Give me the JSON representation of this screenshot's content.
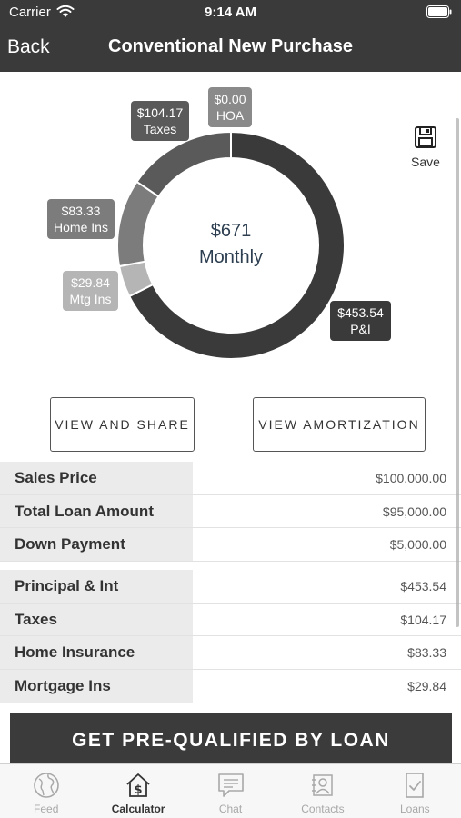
{
  "status_bar": {
    "carrier": "Carrier",
    "time": "9:14 AM"
  },
  "nav": {
    "back_label": "Back",
    "title": "Conventional New Purchase"
  },
  "chart": {
    "center_amount": "$671",
    "center_label": "Monthly",
    "segments": [
      {
        "key": "hoa",
        "amount": "$0.00",
        "label": "HOA",
        "value": 0.0,
        "color": "#8a8a8a"
      },
      {
        "key": "pi",
        "amount": "$453.54",
        "label": "P&I",
        "value": 453.54,
        "color": "#3a3a3a"
      },
      {
        "key": "mtg_ins",
        "amount": "$29.84",
        "label": "Mtg Ins",
        "value": 29.84,
        "color": "#b5b5b5"
      },
      {
        "key": "home_ins",
        "amount": "$83.33",
        "label": "Home Ins",
        "value": 83.33,
        "color": "#7c7c7c"
      },
      {
        "key": "taxes",
        "amount": "$104.17",
        "label": "Taxes",
        "value": 104.17,
        "color": "#5a5a5a"
      }
    ]
  },
  "save": {
    "label": "Save",
    "icon": "save-icon"
  },
  "buttons": {
    "view_share": "VIEW AND SHARE",
    "view_amortization": "VIEW AMORTIZATION"
  },
  "loan_details": [
    {
      "label": "Sales Price",
      "value": "$100,000.00"
    },
    {
      "label": "Total Loan Amount",
      "value": "$95,000.00"
    },
    {
      "label": "Down Payment",
      "value": "$5,000.00"
    }
  ],
  "payment_details": [
    {
      "label": "Principal & Int",
      "value": "$453.54"
    },
    {
      "label": "Taxes",
      "value": "$104.17"
    },
    {
      "label": "Home Insurance",
      "value": "$83.33"
    },
    {
      "label": "Mortgage Ins",
      "value": "$29.84"
    }
  ],
  "cta": {
    "label": "GET PRE-QUALIFIED BY LOAN"
  },
  "tabs": [
    {
      "label": "Feed",
      "icon": "globe-icon",
      "active": false
    },
    {
      "label": "Calculator",
      "icon": "calculator-house-icon",
      "active": true
    },
    {
      "label": "Chat",
      "icon": "chat-icon",
      "active": false
    },
    {
      "label": "Contacts",
      "icon": "contacts-icon",
      "active": false
    },
    {
      "label": "Loans",
      "icon": "loans-document-icon",
      "active": false
    }
  ]
}
